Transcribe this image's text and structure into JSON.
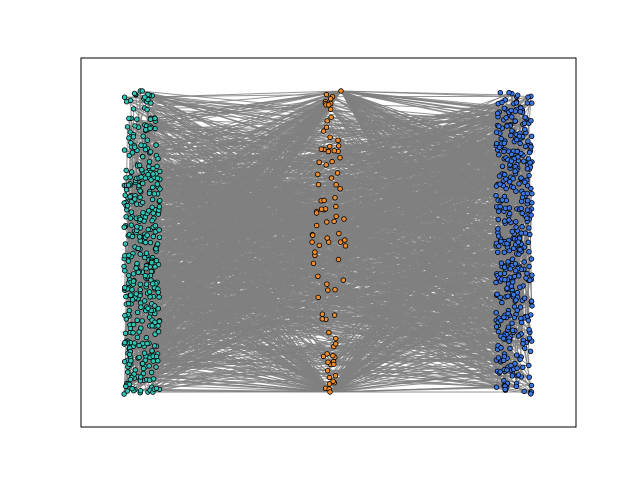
{
  "chart_data": {
    "type": "network-graph",
    "layout": "multipartite",
    "title": "",
    "xlabel": "",
    "ylabel": "",
    "axis_ticks": false,
    "edge_color": "#808080",
    "node_edge_color": "#000000",
    "groups": [
      {
        "id": "left",
        "color": "#2ec4b6",
        "node_count": 420
      },
      {
        "id": "middle",
        "color": "#f28c28",
        "node_count": 90
      },
      {
        "id": "right",
        "color": "#3b78e7",
        "node_count": 420
      }
    ]
  }
}
